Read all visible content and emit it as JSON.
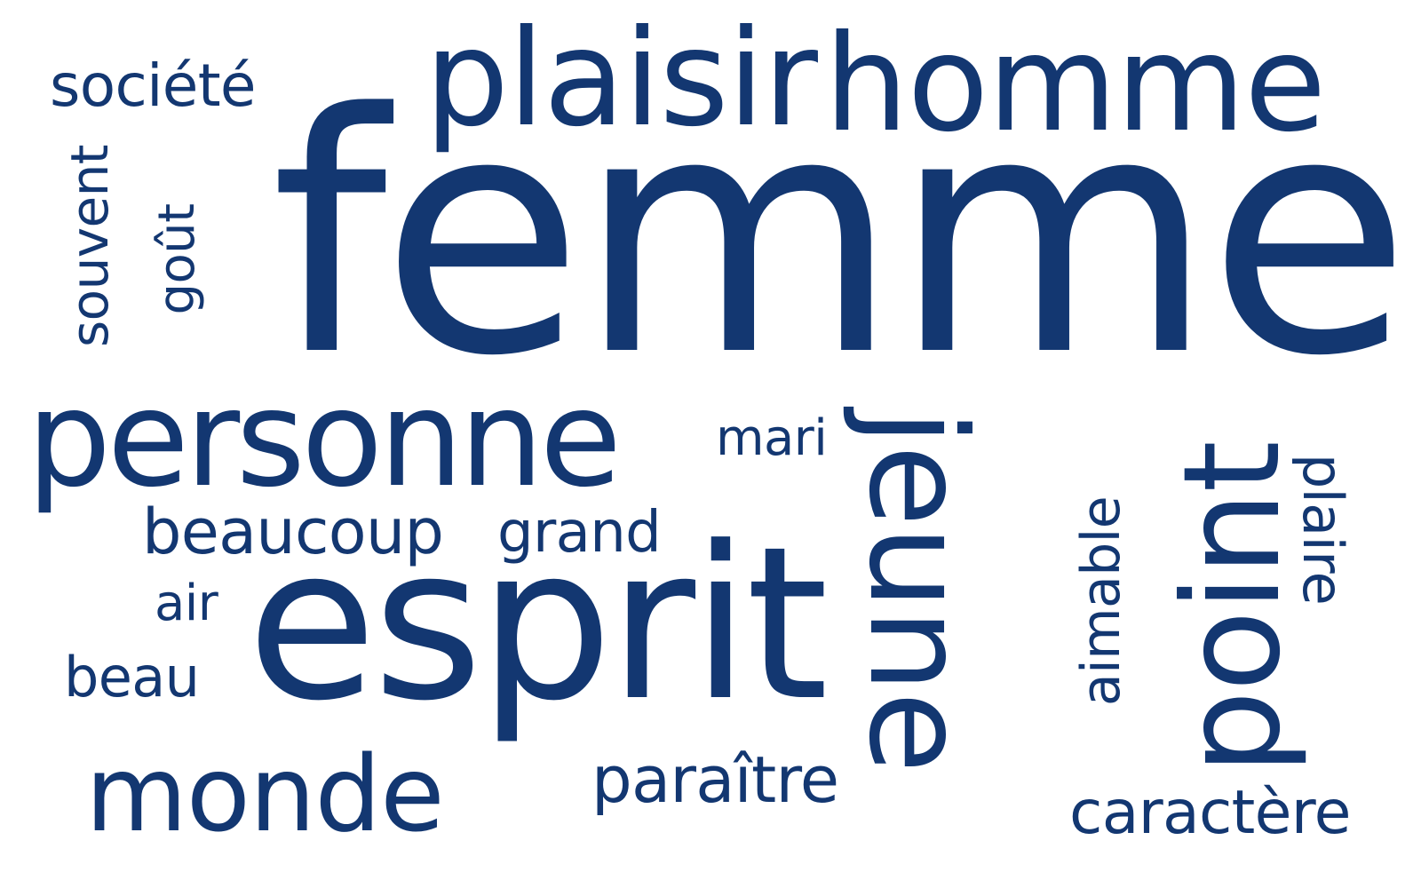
{
  "word_cloud": {
    "color": "#133771",
    "words": {
      "femme": "femme",
      "esprit": "esprit",
      "personne": "personne",
      "plaisir": "plaisir",
      "homme": "homme",
      "jeune": "jeune",
      "point": "point",
      "monde": "monde",
      "societe": "société",
      "souvent": "souvent",
      "gout": "goût",
      "mari": "mari",
      "beaucoup": "beaucoup",
      "grand": "grand",
      "air": "air",
      "beau": "beau",
      "paraitre": "paraître",
      "aimable": "aimable",
      "plaire": "plaire",
      "caractere": "caractère"
    }
  }
}
